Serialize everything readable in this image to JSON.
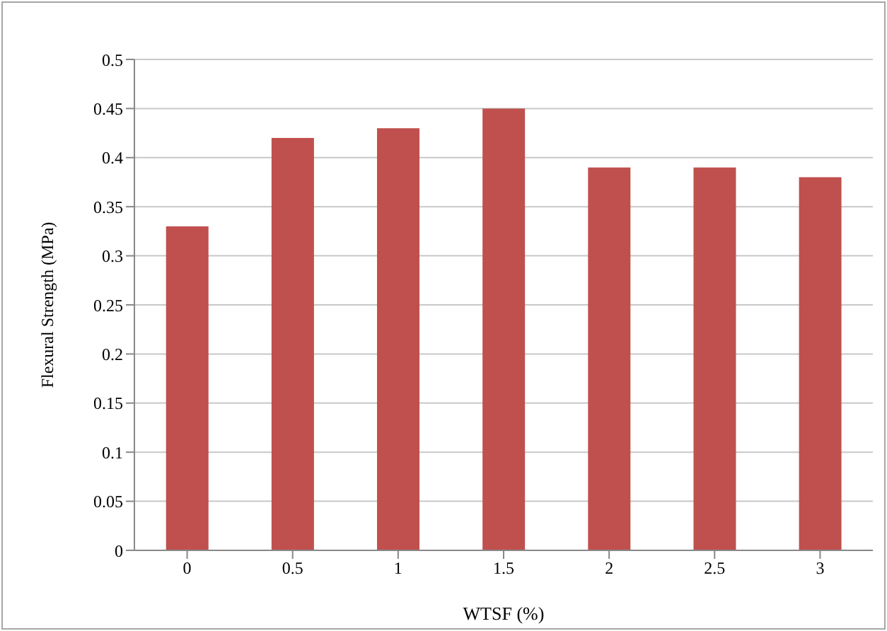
{
  "chart_data": {
    "type": "bar",
    "xlabel": "WTSF (%)",
    "ylabel": "Flexural Strength (MPa)",
    "categories": [
      "0",
      "0.5",
      "1",
      "1.5",
      "2",
      "2.5",
      "3"
    ],
    "values": [
      0.33,
      0.42,
      0.43,
      0.45,
      0.39,
      0.39,
      0.38
    ],
    "color": "#c0504d",
    "ylim": [
      0,
      0.5
    ],
    "yticks": [
      0,
      0.05,
      0.1,
      0.15,
      0.2,
      0.25,
      0.3,
      0.35,
      0.4,
      0.45,
      0.5
    ],
    "grid": "y"
  }
}
